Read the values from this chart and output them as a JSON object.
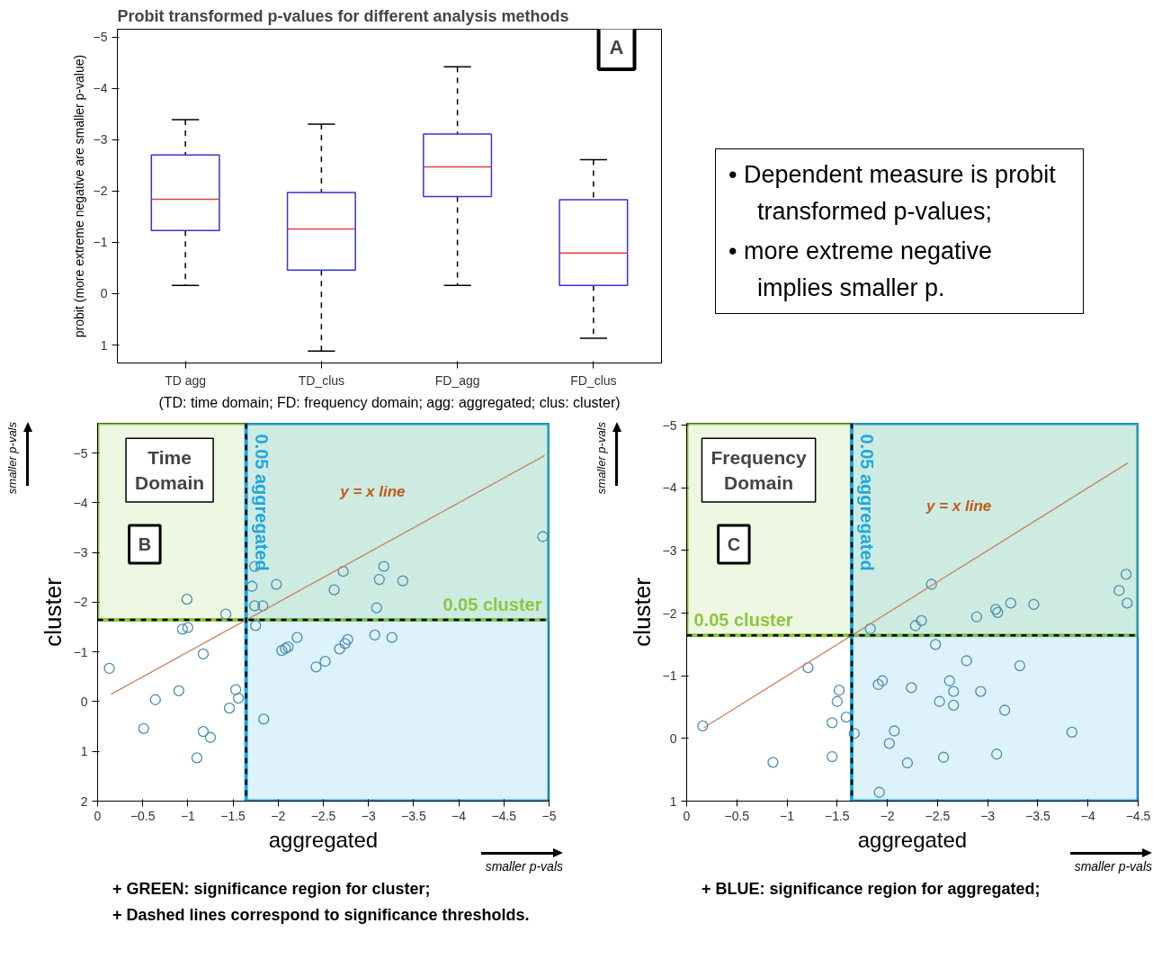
{
  "chart_data": [
    {
      "type": "box",
      "title": "Probit transformed p-values for different analysis methods",
      "ylabel": "probit (more extreme negative are smaller p-value)",
      "xlabel": "(TD: time domain; FD: frequency domain; agg: aggregated; clus: cluster)",
      "categories": [
        "TD agg",
        "TD_clus",
        "FD_agg",
        "FD_clus"
      ],
      "ylim": [
        1.35,
        -5.15
      ],
      "yticks": [
        -5,
        -4,
        -3,
        -2,
        -1,
        0,
        1
      ],
      "grid": false,
      "annotations": [
        "A"
      ],
      "series": [
        {
          "color": "#3535d0",
          "boxes": [
            {
              "low": -3.39,
              "q1": -2.7,
              "median": -1.84,
              "q3": -1.23,
              "high": -0.16
            },
            {
              "low": -3.3,
              "q1": -1.97,
              "median": -1.26,
              "q3": -0.46,
              "high": 1.12
            },
            {
              "low": -4.42,
              "q1": -3.11,
              "median": -2.47,
              "q3": -1.89,
              "high": -0.16
            },
            {
              "low": -2.61,
              "q1": -1.83,
              "median": -0.79,
              "q3": -0.16,
              "high": 0.87
            }
          ]
        }
      ]
    },
    {
      "type": "other",
      "annotations": [
        "• Dependent measure is probit transformed p-values;",
        "• more extreme negative implies smaller p."
      ]
    },
    {
      "type": "scatter",
      "xlabel": "aggregated",
      "ylabel": "cluster",
      "xlim": [
        0,
        -5
      ],
      "ylim": [
        2,
        -5.6
      ],
      "xticks": [
        0,
        -0.5,
        -1,
        -1.5,
        -2,
        -2.5,
        -3,
        -3.5,
        -4,
        -4.5,
        -5
      ],
      "yticks": [
        -5,
        -4,
        -3,
        -2,
        -1,
        0,
        1,
        2
      ],
      "grid": false,
      "marker": "circle",
      "series": [
        {
          "type": "scatter",
          "color": "#4a8cb0",
          "x": [
            -0.13,
            -0.51,
            -0.64,
            -0.9,
            -0.94,
            -1.0,
            -0.99,
            -1.1,
            -1.17,
            -1.17,
            -1.25,
            -1.42,
            -1.46,
            -1.53,
            -1.56,
            -1.71,
            -1.74,
            -1.74,
            -1.75,
            -1.83,
            -1.84,
            -1.98,
            -2.04,
            -2.08,
            -2.11,
            -2.21,
            -2.42,
            -2.52,
            -2.62,
            -2.68,
            -2.72,
            -2.74,
            -2.77,
            -3.07,
            -3.09,
            -3.12,
            -3.17,
            -3.26,
            -3.38,
            -4.93
          ],
          "values": [
            -0.67,
            0.54,
            -0.04,
            -0.22,
            -1.46,
            -1.49,
            -2.06,
            1.13,
            -0.96,
            0.6,
            0.72,
            -1.76,
            0.13,
            -0.24,
            -0.07,
            -2.32,
            -2.72,
            -1.93,
            -1.53,
            -1.93,
            0.35,
            -2.36,
            -1.03,
            -1.07,
            -1.1,
            -1.29,
            -0.7,
            -0.81,
            -2.25,
            -1.06,
            -2.62,
            -1.17,
            -1.25,
            -1.34,
            -1.89,
            -2.46,
            -2.72,
            -1.29,
            -2.43,
            -3.32
          ]
        },
        {
          "type": "line",
          "name": "y = x line",
          "color": "#c8805f",
          "marker": "none",
          "x": [
            -0.15,
            -4.95
          ],
          "values": [
            -0.15,
            -4.95
          ]
        }
      ],
      "ref_lines": [
        {
          "axis": "x",
          "value": -1.645,
          "label": "0.05 aggregated",
          "line_style": "dashed",
          "color": "#000000"
        },
        {
          "axis": "y",
          "value": -1.645,
          "label": "0.05 cluster",
          "line_style": "dashed",
          "color": "#000000"
        }
      ],
      "bands": [
        {
          "axis": "y",
          "from": -1.645,
          "to": -5.6,
          "color": "#8cc63f"
        },
        {
          "axis": "x",
          "from": -1.645,
          "to": -5,
          "color": "#1ea7e1"
        }
      ],
      "annotations": [
        "Time Domain",
        "B",
        "smaller p-vals",
        "smaller p-vals",
        "+ GREEN: significance region for cluster;",
        "+ Dashed lines correspond to significance thresholds."
      ]
    },
    {
      "type": "scatter",
      "xlabel": "aggregated",
      "ylabel": "cluster",
      "xlim": [
        0,
        -4.5
      ],
      "ylim": [
        1,
        -5.03
      ],
      "xticks": [
        0,
        -0.5,
        -1,
        -1.5,
        -2,
        -2.5,
        -3,
        -3.5,
        -4,
        -4.5
      ],
      "yticks": [
        -5,
        -4,
        -3,
        -2,
        -1,
        0,
        1
      ],
      "grid": false,
      "marker": "circle",
      "series": [
        {
          "type": "scatter",
          "color": "#4a8cb0",
          "x": [
            -0.16,
            -0.86,
            -1.21,
            -1.45,
            -1.45,
            -1.5,
            -1.52,
            -1.59,
            -1.67,
            -1.83,
            -1.91,
            -1.95,
            -1.92,
            -2.02,
            -2.07,
            -2.2,
            -2.24,
            -2.28,
            -2.34,
            -2.44,
            -2.48,
            -2.52,
            -2.56,
            -2.62,
            -2.66,
            -2.66,
            -2.79,
            -2.89,
            -2.93,
            -3.08,
            -3.1,
            -3.09,
            -3.17,
            -3.23,
            -3.32,
            -3.46,
            -3.84,
            -4.31,
            -4.38,
            -4.39
          ],
          "values": [
            -0.2,
            0.38,
            -1.13,
            -0.25,
            0.29,
            -0.59,
            -0.77,
            -0.34,
            -0.08,
            -1.75,
            -0.86,
            -0.92,
            0.86,
            0.08,
            -0.12,
            0.39,
            -0.81,
            -1.8,
            -1.88,
            -2.46,
            -1.5,
            -0.59,
            0.3,
            -0.92,
            -0.75,
            -0.53,
            -1.24,
            -1.94,
            -0.75,
            -2.06,
            -2.01,
            0.25,
            -0.45,
            -2.16,
            -1.16,
            -2.14,
            -0.1,
            -2.36,
            -2.62,
            -2.16
          ]
        },
        {
          "type": "line",
          "name": "y = x line",
          "color": "#c8805f",
          "marker": "none",
          "x": [
            -0.17,
            -4.4
          ],
          "values": [
            -0.17,
            -4.4
          ]
        }
      ],
      "ref_lines": [
        {
          "axis": "x",
          "value": -1.645,
          "label": "0.05 aggregated",
          "line_style": "dashed",
          "color": "#000000"
        },
        {
          "axis": "y",
          "value": -1.645,
          "label": "0.05 cluster",
          "line_style": "dashed",
          "color": "#000000"
        }
      ],
      "bands": [
        {
          "axis": "y",
          "from": -1.645,
          "to": -5.03,
          "color": "#8cc63f"
        },
        {
          "axis": "x",
          "from": -1.645,
          "to": -4.5,
          "color": "#1ea7e1"
        }
      ],
      "annotations": [
        "Frequency Domain",
        "C",
        "smaller p-vals",
        "smaller p-vals",
        "+ BLUE: significance region for aggregated;"
      ]
    }
  ]
}
